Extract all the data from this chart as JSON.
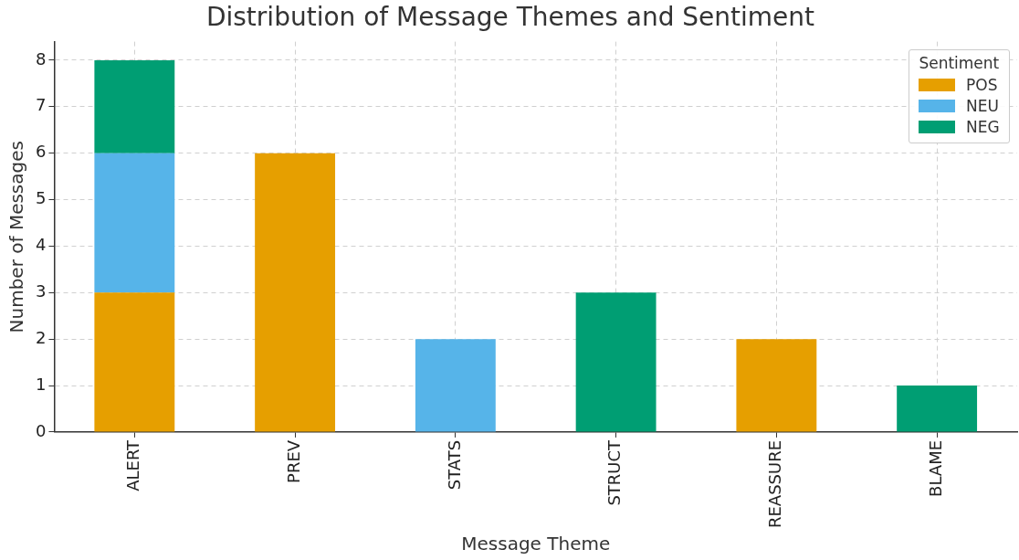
{
  "chart_data": {
    "type": "bar",
    "title": "Distribution of Message Themes and Sentiment",
    "xlabel": "Message Theme",
    "ylabel": "Number of Messages",
    "legend_title": "Sentiment",
    "categories": [
      "ALERT",
      "PREV",
      "STATS",
      "STRUCT",
      "REASSURE",
      "BLAME"
    ],
    "series": [
      {
        "name": "POS",
        "color": "#e69f00",
        "values": [
          3,
          6,
          0,
          0,
          2,
          0
        ]
      },
      {
        "name": "NEU",
        "color": "#56b4e9",
        "values": [
          3,
          0,
          2,
          0,
          0,
          0
        ]
      },
      {
        "name": "NEG",
        "color": "#009e73",
        "values": [
          2,
          0,
          0,
          3,
          0,
          1
        ]
      }
    ],
    "stacked": true,
    "ylim": [
      0,
      8.4
    ],
    "yticks": [
      0,
      1,
      2,
      3,
      4,
      5,
      6,
      7,
      8
    ],
    "grid": true,
    "legend": "top right"
  }
}
